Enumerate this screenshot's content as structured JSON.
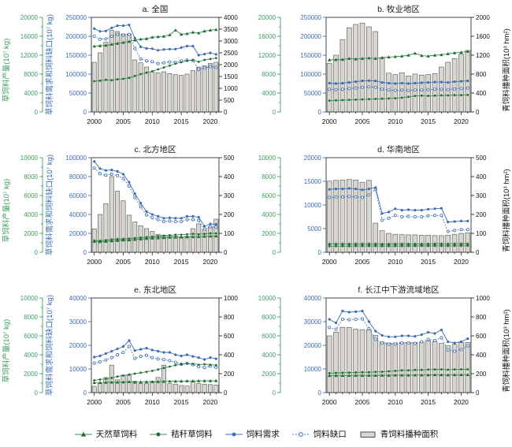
{
  "figure": {
    "axis_labels": {
      "left_green": "草饲料产量(10⁷ kg)",
      "left_blue": "草饲料需求和饲料缺口(10⁷ kg)",
      "right": "青饲料播种面积(10³ hm²)"
    },
    "colors": {
      "green_axis": "#3f9d62",
      "green_line": "#3c8c4f",
      "green_marker": "#1e6b33",
      "blue": "#3c6cb4",
      "bar_fill": "#d9d6d0",
      "bar_stroke": "#4f4f4f",
      "frame": "#333333",
      "text": "#111111"
    },
    "legend": [
      {
        "label": "天然草饲料",
        "marker": "triangle-line",
        "color": "#1e6b33"
      },
      {
        "label": "秸秆草饲料",
        "marker": "dot-line",
        "color": "#1e6b33"
      },
      {
        "label": "饲料需求",
        "marker": "filled-circle-line",
        "color": "#3c6cb4"
      },
      {
        "label": "饲料缺口",
        "marker": "open-circle-dotted-line",
        "color": "#3c6cb4"
      },
      {
        "label": "青饲料播种面积",
        "marker": "bar-rect",
        "color": "#d9d6d0"
      }
    ]
  },
  "chart_data": {
    "type": "bar",
    "subtype": "combo-bar-line-small-multiples",
    "grid": false,
    "legend_position": "bottom",
    "legend_labels": [
      "天然草饲料",
      "秸秆草饲料",
      "饲料需求",
      "饲料缺口",
      "青饲料播种面积"
    ],
    "years": [
      2000,
      2001,
      2002,
      2003,
      2004,
      2005,
      2006,
      2007,
      2008,
      2009,
      2010,
      2011,
      2012,
      2013,
      2014,
      2015,
      2016,
      2017,
      2018,
      2019,
      2020,
      2021
    ],
    "x_ticks": [
      2000,
      2005,
      2010,
      2015,
      2020
    ],
    "series_axis": {
      "natural_grass_feed": "left_green",
      "straw_feed": "left_green",
      "feed_demand": "left_blue",
      "feed_gap": "left_blue",
      "green_feed_sown_area": "right"
    },
    "panels": [
      {
        "id": "a",
        "title": "a. 全国",
        "green_axis": {
          "min": 0,
          "max": 20000,
          "ticks": [
            0,
            4000,
            8000,
            12000,
            16000,
            20000
          ]
        },
        "blue_axis": {
          "min": 0,
          "max": 250000,
          "ticks": [
            0,
            50000,
            100000,
            150000,
            200000,
            250000
          ]
        },
        "right_axis": {
          "min": 0,
          "max": 4000,
          "ticks": [
            0,
            500,
            1000,
            1500,
            2000,
            2500,
            3000,
            3500,
            4000
          ]
        },
        "series": {
          "natural_grass_feed": [
            13900,
            14000,
            14100,
            14300,
            14500,
            14700,
            14900,
            15200,
            15400,
            15500,
            15800,
            15900,
            16000,
            16300,
            17300,
            16400,
            16550,
            16850,
            16700,
            17100,
            17300,
            17400
          ],
          "straw_feed": [
            6500,
            6600,
            6800,
            6700,
            6900,
            7000,
            7200,
            7600,
            8000,
            8300,
            8600,
            9000,
            9400,
            9800,
            10200,
            10500,
            10800,
            11000,
            10600,
            11000,
            11200,
            11400
          ],
          "feed_demand": [
            220000,
            213000,
            214000,
            222000,
            228000,
            228000,
            230000,
            195000,
            172000,
            168000,
            167000,
            163000,
            165000,
            166000,
            166000,
            170000,
            174000,
            174000,
            150000,
            153000,
            156000,
            152000
          ],
          "feed_gap": [
            200000,
            192000,
            193000,
            200000,
            205000,
            203000,
            205000,
            168000,
            140000,
            135000,
            133000,
            128000,
            130000,
            132000,
            131000,
            135000,
            137000,
            136000,
            112000,
            116000,
            120000,
            118000
          ],
          "green_feed_sown_area": [
            2100,
            2500,
            2950,
            3450,
            3400,
            3300,
            3300,
            2200,
            2080,
            1900,
            1700,
            1650,
            1700,
            1620,
            1580,
            1550,
            1600,
            1750,
            1900,
            1950,
            2050,
            2100
          ]
        }
      },
      {
        "id": "b",
        "title": "b. 牧业地区",
        "green_axis": {
          "min": 0,
          "max": 20000,
          "ticks": [
            0,
            4000,
            8000,
            12000,
            16000,
            20000
          ]
        },
        "blue_axis": {
          "min": 0,
          "max": 250000,
          "ticks": [
            0,
            50000,
            100000,
            150000,
            200000,
            250000
          ]
        },
        "right_axis": {
          "min": 0,
          "max": 2000,
          "ticks": [
            0,
            400,
            800,
            1200,
            1600,
            2000
          ]
        },
        "series": {
          "natural_grass_feed": [
            11000,
            11050,
            11100,
            11300,
            11200,
            11300,
            11400,
            11300,
            11500,
            11600,
            11700,
            11800,
            12000,
            12400,
            11900,
            11800,
            12000,
            12100,
            12300,
            12500,
            12600,
            12800
          ],
          "straw_feed": [
            2400,
            2450,
            2500,
            2550,
            2600,
            2650,
            2700,
            2750,
            2800,
            2850,
            2900,
            3000,
            3200,
            3400,
            3450,
            3400,
            3450,
            3500,
            3500,
            3550,
            3550,
            3600
          ],
          "feed_demand": [
            76000,
            75000,
            76000,
            78000,
            80000,
            82000,
            83000,
            82000,
            78000,
            76000,
            75000,
            76000,
            75000,
            76000,
            77000,
            78000,
            79000,
            79000,
            78000,
            80000,
            81000,
            82000
          ],
          "feed_gap": [
            60000,
            59000,
            60000,
            62000,
            63000,
            65000,
            66000,
            65000,
            60000,
            58000,
            57000,
            58000,
            57000,
            58000,
            58000,
            59000,
            60000,
            60000,
            59000,
            61000,
            62000,
            63000
          ],
          "green_feed_sown_area": [
            1030,
            1200,
            1530,
            1780,
            1850,
            1880,
            1800,
            1700,
            1150,
            820,
            790,
            830,
            760,
            800,
            780,
            790,
            810,
            950,
            1050,
            1130,
            1220,
            1300
          ]
        }
      },
      {
        "id": "c",
        "title": "c. 北方地区",
        "green_axis": {
          "min": 0,
          "max": 10000,
          "ticks": [
            0,
            2000,
            4000,
            6000,
            8000,
            10000
          ]
        },
        "blue_axis": {
          "min": 0,
          "max": 100000,
          "ticks": [
            0,
            20000,
            40000,
            60000,
            80000,
            100000
          ]
        },
        "right_axis": {
          "min": 0,
          "max": 500,
          "ticks": [
            0,
            100,
            200,
            300,
            400,
            500
          ]
        },
        "series": {
          "natural_grass_feed": [
            1150,
            1120,
            1150,
            1200,
            1250,
            1280,
            1300,
            1350,
            1400,
            1450,
            1500,
            1520,
            1550,
            1580,
            1600,
            1600,
            1620,
            1650,
            1650,
            1680,
            1700,
            1720
          ],
          "straw_feed": [
            1250,
            1220,
            1280,
            1350,
            1400,
            1420,
            1450,
            1500,
            1550,
            1600,
            1650,
            1700,
            1750,
            1800,
            1850,
            1850,
            1900,
            1950,
            1900,
            1950,
            2000,
            2000
          ],
          "feed_demand": [
            96000,
            88500,
            86500,
            87000,
            85500,
            82500,
            74000,
            62000,
            52000,
            43000,
            40000,
            38000,
            36000,
            36500,
            36000,
            36000,
            38000,
            38000,
            37000,
            27500,
            30000,
            29500
          ],
          "feed_gap": [
            89000,
            83000,
            81500,
            82500,
            81000,
            78000,
            70000,
            58000,
            48000,
            39500,
            36500,
            34500,
            32500,
            33000,
            32500,
            32500,
            34500,
            34500,
            33500,
            24500,
            27000,
            26500
          ],
          "green_feed_sown_area": [
            124,
            200,
            257,
            400,
            323,
            272,
            196,
            160,
            140,
            125,
            110,
            95,
            90,
            88,
            85,
            82,
            85,
            125,
            150,
            120,
            135,
            175
          ]
        }
      },
      {
        "id": "d",
        "title": "d. 华南地区",
        "green_axis": {
          "min": 0,
          "max": 10000,
          "ticks": [
            0,
            2000,
            4000,
            6000,
            8000,
            10000
          ]
        },
        "blue_axis": {
          "min": 0,
          "max": 20000,
          "ticks": [
            0,
            5000,
            10000,
            15000,
            20000
          ]
        },
        "right_axis": {
          "min": 0,
          "max": 500,
          "ticks": [
            0,
            100,
            200,
            300,
            400,
            500
          ]
        },
        "series": {
          "natural_grass_feed": [
            900,
            900,
            900,
            900,
            900,
            900,
            900,
            900,
            890,
            890,
            900,
            900,
            900,
            900,
            900,
            900,
            910,
            910,
            900,
            910,
            920,
            920
          ],
          "straw_feed": [
            640,
            645,
            650,
            650,
            655,
            655,
            660,
            660,
            650,
            650,
            660,
            660,
            665,
            665,
            670,
            670,
            675,
            675,
            670,
            675,
            680,
            680
          ],
          "feed_demand": [
            13300,
            13400,
            13400,
            13500,
            13400,
            13200,
            13400,
            13700,
            8200,
            8500,
            9200,
            8900,
            9000,
            8900,
            8900,
            9100,
            9200,
            9300,
            6400,
            6500,
            6600,
            6600
          ],
          "feed_gap": [
            11600,
            11700,
            11700,
            11800,
            11700,
            11600,
            12100,
            13300,
            6800,
            7200,
            7800,
            7500,
            7600,
            7500,
            7500,
            7700,
            7800,
            7800,
            4400,
            4600,
            4800,
            4800
          ],
          "green_feed_sown_area": [
            376,
            380,
            382,
            385,
            382,
            370,
            380,
            154,
            114,
            100,
            95,
            93,
            92,
            92,
            90,
            90,
            88,
            88,
            90,
            95,
            100,
            102
          ]
        }
      },
      {
        "id": "e",
        "title": "e. 东北地区",
        "green_axis": {
          "min": 0,
          "max": 10000,
          "ticks": [
            0,
            2000,
            4000,
            6000,
            8000,
            10000
          ]
        },
        "blue_axis": {
          "min": 0,
          "max": 40000,
          "ticks": [
            0,
            10000,
            20000,
            30000,
            40000
          ]
        },
        "right_axis": {
          "min": 0,
          "max": 1000,
          "ticks": [
            0,
            200,
            400,
            600,
            800,
            1000
          ]
        },
        "series": {
          "natural_grass_feed": [
            1050,
            1060,
            1080,
            1100,
            1100,
            1120,
            1150,
            1100,
            1120,
            1150,
            1150,
            1170,
            1180,
            1200,
            1200,
            1220,
            1230,
            1230,
            1240,
            1250,
            1250,
            1260
          ],
          "straw_feed": [
            1300,
            1380,
            1450,
            1550,
            1700,
            1800,
            1900,
            2000,
            2100,
            2200,
            2300,
            2450,
            2600,
            2750,
            2900,
            3000,
            3050,
            3050,
            2950,
            3000,
            2950,
            2900
          ],
          "feed_demand": [
            15000,
            15500,
            16500,
            17500,
            18500,
            19500,
            22000,
            17800,
            18300,
            18800,
            18000,
            17500,
            17000,
            17000,
            16000,
            15500,
            16000,
            15300,
            14800,
            14000,
            14800,
            14300
          ],
          "feed_gap": [
            12500,
            13000,
            13800,
            14800,
            16000,
            17000,
            19500,
            14500,
            15300,
            15800,
            14800,
            14200,
            14000,
            13500,
            12800,
            12000,
            12400,
            11800,
            11000,
            10600,
            11200,
            10700
          ],
          "green_feed_sown_area": [
            67,
            95,
            160,
            290,
            135,
            185,
            185,
            120,
            95,
            95,
            120,
            160,
            290,
            95,
            90,
            75,
            70,
            115,
            95,
            90,
            85,
            80
          ]
        }
      },
      {
        "id": "f",
        "title": "f. 长江中下游流域地区",
        "green_axis": {
          "min": 0,
          "max": 10000,
          "ticks": [
            0,
            2000,
            4000,
            6000,
            8000,
            10000
          ]
        },
        "blue_axis": {
          "min": 0,
          "max": 40000,
          "ticks": [
            0,
            10000,
            20000,
            30000,
            40000
          ]
        },
        "right_axis": {
          "min": 0,
          "max": 1000,
          "ticks": [
            0,
            200,
            400,
            600,
            800,
            1000
          ]
        },
        "series": {
          "natural_grass_feed": [
            1800,
            1800,
            1810,
            1810,
            1820,
            1820,
            1820,
            1820,
            1830,
            1830,
            1850,
            1850,
            1850,
            1860,
            1860,
            1870,
            1880,
            1880,
            1860,
            1880,
            1890,
            1890
          ],
          "straw_feed": [
            2050,
            2080,
            2100,
            2120,
            2130,
            2150,
            2150,
            2180,
            2200,
            2250,
            2300,
            2350,
            2350,
            2400,
            2400,
            2430,
            2440,
            2460,
            2420,
            2450,
            2460,
            2460
          ],
          "feed_demand": [
            31000,
            29500,
            34500,
            34000,
            34200,
            34500,
            30000,
            26000,
            24200,
            23600,
            23600,
            24000,
            24000,
            23800,
            24500,
            25500,
            25000,
            26500,
            21500,
            21000,
            21500,
            22800
          ],
          "feed_gap": [
            27500,
            26800,
            31000,
            30800,
            31000,
            31200,
            27000,
            22500,
            21000,
            20500,
            20500,
            21000,
            21000,
            20800,
            21500,
            22500,
            22000,
            23200,
            18000,
            17500,
            18200,
            19800
          ],
          "green_feed_sown_area": [
            600,
            640,
            690,
            690,
            670,
            665,
            665,
            605,
            535,
            525,
            525,
            530,
            530,
            530,
            535,
            545,
            540,
            520,
            495,
            510,
            530,
            530
          ]
        }
      }
    ]
  }
}
